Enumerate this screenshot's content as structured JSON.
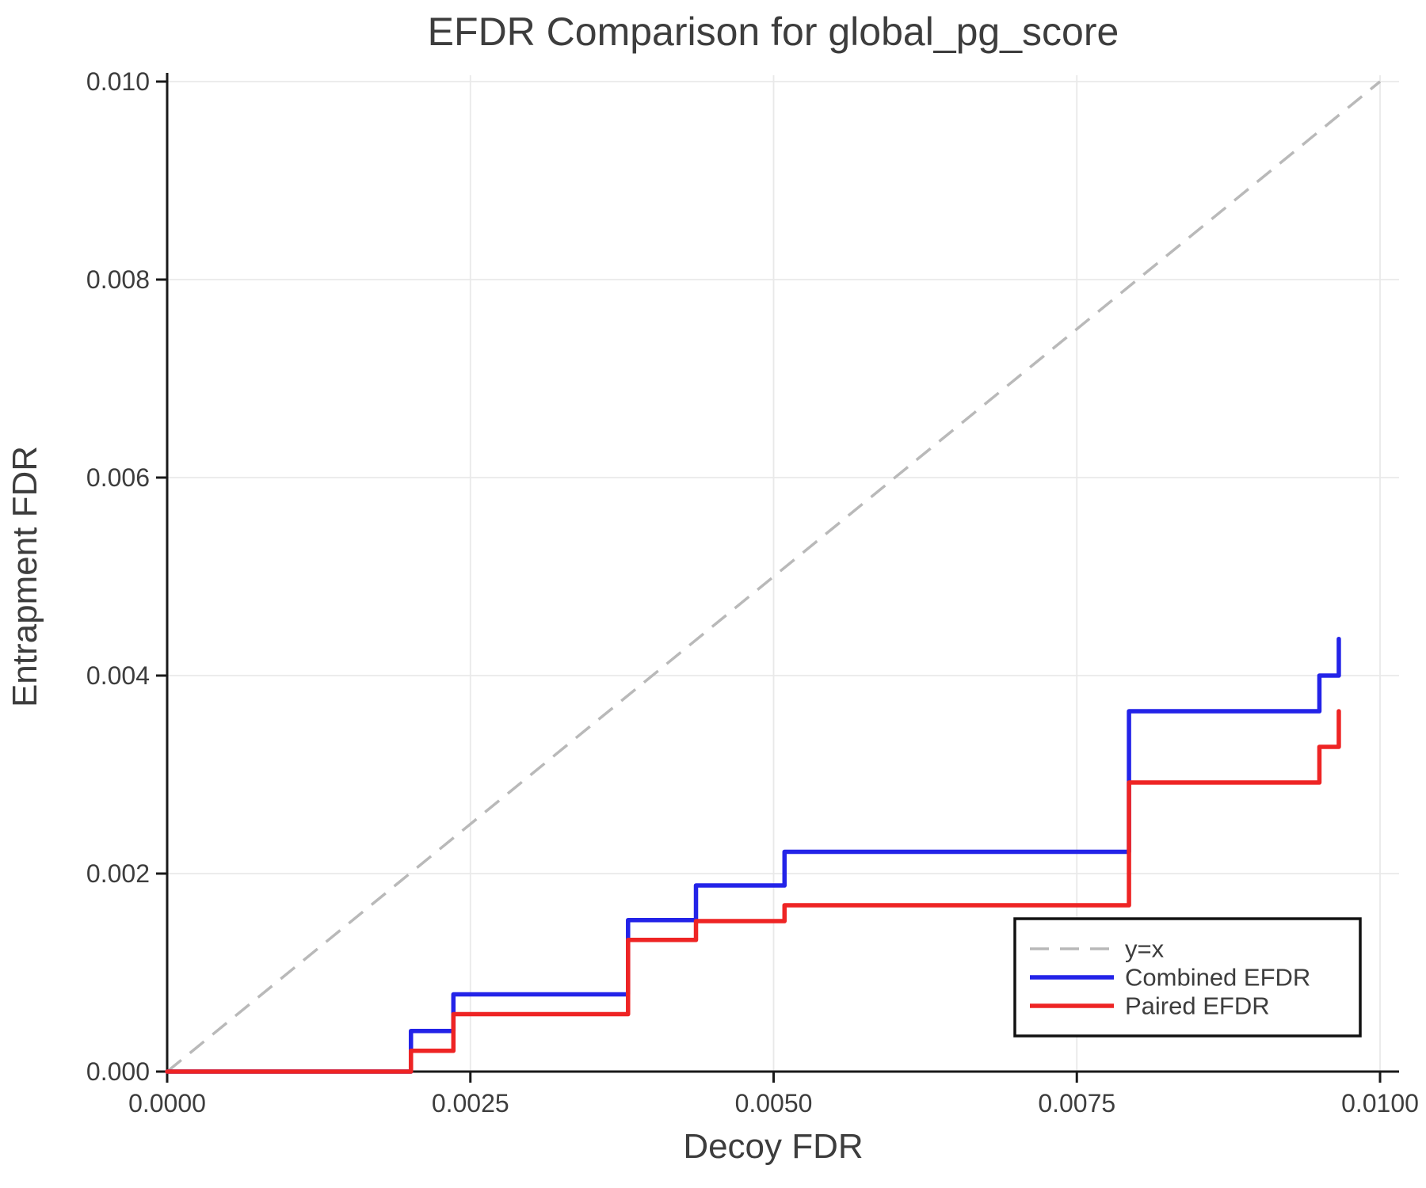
{
  "chart_data": {
    "type": "line",
    "title": "EFDR Comparison for global_pg_score",
    "xlabel": "Decoy FDR",
    "ylabel": "Entrapment FDR",
    "xlim": [
      0,
      0.01
    ],
    "ylim": [
      0,
      0.01
    ],
    "grid": true,
    "legend_position": "lower right",
    "x_ticks": [
      0.0,
      0.0025,
      0.005,
      0.0075,
      0.01
    ],
    "x_tick_labels": [
      "0.0000",
      "0.0025",
      "0.0050",
      "0.0075",
      "0.0100"
    ],
    "y_ticks": [
      0.0,
      0.002,
      0.004,
      0.006,
      0.008,
      0.01
    ],
    "y_tick_labels": [
      "0.000",
      "0.002",
      "0.004",
      "0.006",
      "0.008",
      "0.010"
    ],
    "reference_line": {
      "label": "y=x",
      "style": "dashed",
      "color": "#b9b9b9",
      "from": [
        0,
        0
      ],
      "to": [
        0.01,
        0.01
      ]
    },
    "series": [
      {
        "name": "Combined EFDR",
        "color": "#2323e8",
        "style": "solid",
        "drawstyle": "steps-post",
        "x": [
          0,
          0.00201,
          0.00236,
          0.0038,
          0.00436,
          0.00509,
          0.00793,
          0.0095,
          0.00966
        ],
        "y": [
          0,
          0.00041,
          0.00078,
          0.00153,
          0.00188,
          0.00222,
          0.00364,
          0.004,
          0.00437
        ]
      },
      {
        "name": "Paired EFDR",
        "color": "#ee2424",
        "style": "solid",
        "drawstyle": "steps-post",
        "x": [
          0,
          0.00201,
          0.00236,
          0.0038,
          0.00436,
          0.00509,
          0.00793,
          0.0095,
          0.00966
        ],
        "y": [
          0,
          0.00021,
          0.00058,
          0.00133,
          0.00152,
          0.00168,
          0.00292,
          0.00328,
          0.00364
        ]
      }
    ],
    "colors": {
      "grid": "#e9e9e9",
      "spine": "#1a1a1a",
      "tick": "#1a1a1a",
      "text": "#3d3d3d",
      "legend_border": "#111111",
      "legend_background": "#ffffff"
    }
  }
}
